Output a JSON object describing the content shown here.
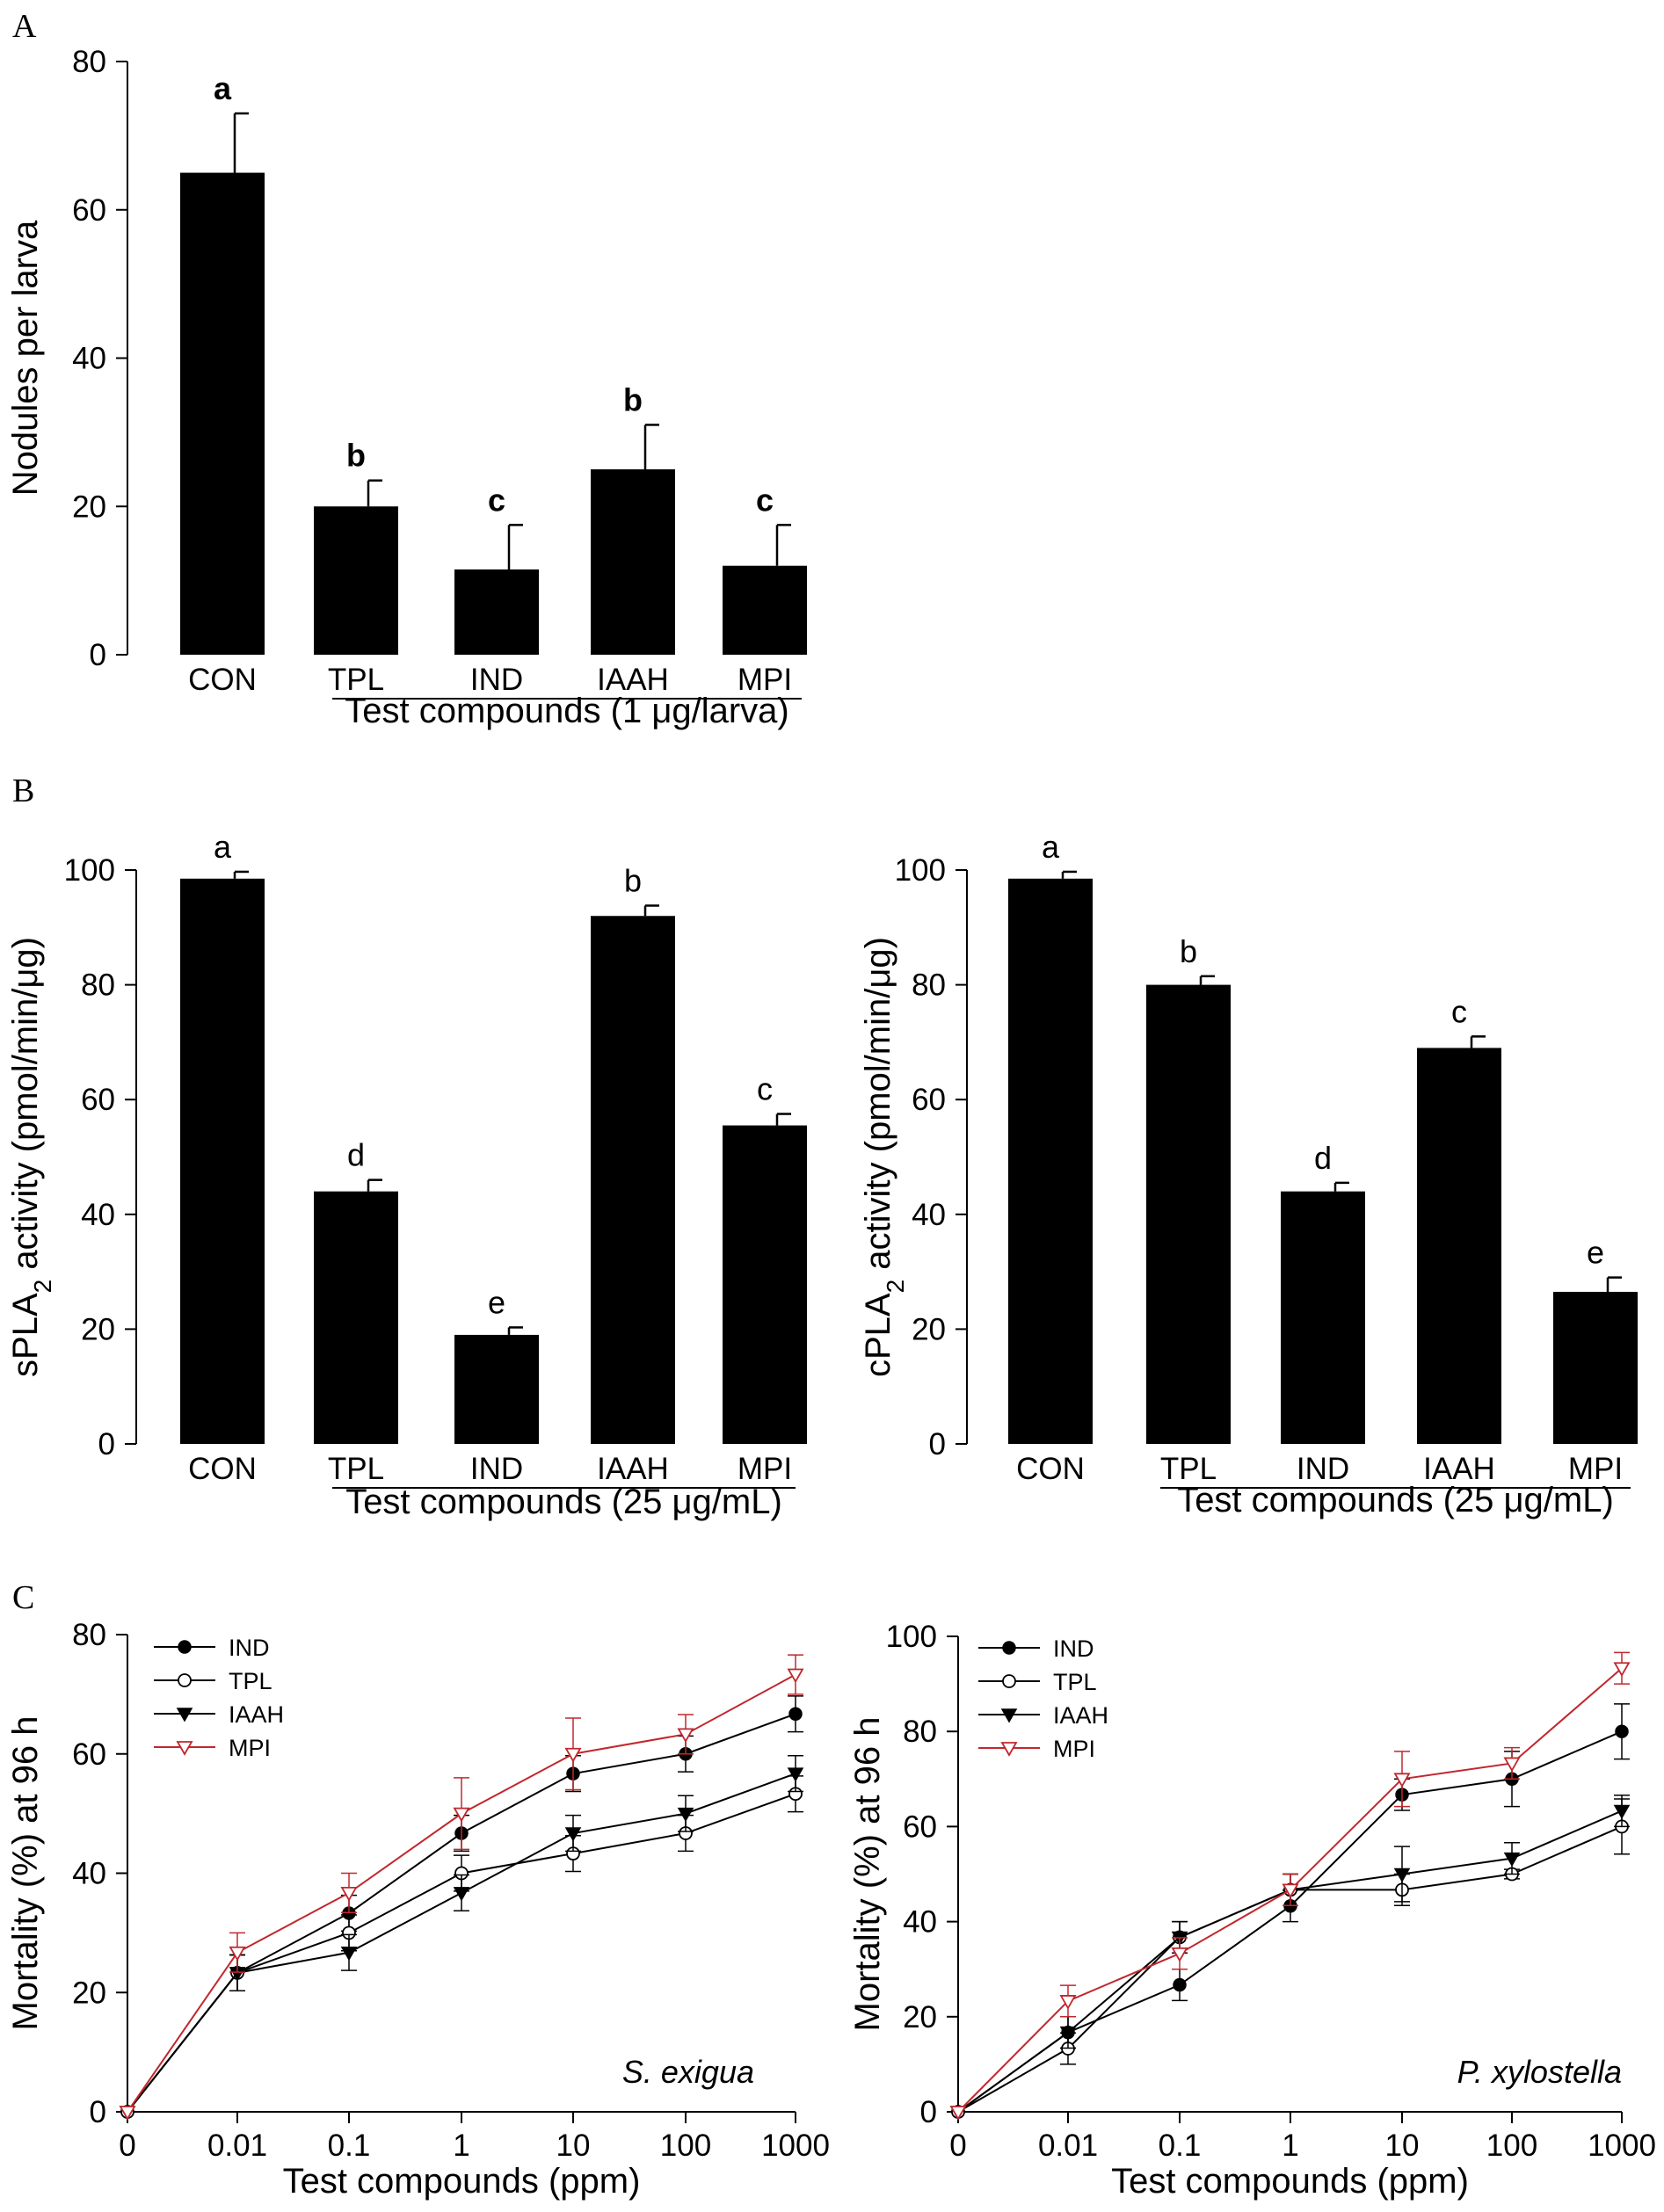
{
  "panels": {
    "A": "A",
    "B": "B",
    "C": "C"
  },
  "chart_data": [
    {
      "id": "A",
      "type": "bar",
      "ylabel": "Nodules per larva",
      "xlabel": "Test compounds (1 μg/larva)",
      "categories": [
        "CON",
        "TPL",
        "IND",
        "IAAH",
        "MPI"
      ],
      "values": [
        65,
        20,
        11.5,
        25,
        12
      ],
      "errors": [
        8,
        3.5,
        6,
        6,
        5.5
      ],
      "letters": [
        "a",
        "b",
        "c",
        "b",
        "c"
      ],
      "ylim": [
        0,
        80
      ],
      "yticks": [
        "0",
        "20",
        "40",
        "60",
        "80"
      ]
    },
    {
      "id": "B-left",
      "type": "bar",
      "ylabel": "sPLA",
      "ylabel_sub": "2",
      "ylabel_rest": " activity (pmol/min/μg)",
      "xlabel": "Test compounds (25 μg/mL)",
      "categories": [
        "CON",
        "TPL",
        "IND",
        "IAAH",
        "MPI"
      ],
      "values": [
        98.5,
        44,
        19,
        92,
        55.5
      ],
      "errors": [
        1.2,
        2,
        1.3,
        1.8,
        2
      ],
      "letters": [
        "a",
        "d",
        "e",
        "b",
        "c"
      ],
      "ylim": [
        0,
        100
      ],
      "yticks": [
        "0",
        "20",
        "40",
        "60",
        "80",
        "100"
      ]
    },
    {
      "id": "B-right",
      "type": "bar",
      "ylabel": "cPLA",
      "ylabel_sub": "2",
      "ylabel_rest": " activity (pmol/min/μg)",
      "xlabel": "Test compounds (25 μg/mL)",
      "categories": [
        "CON",
        "TPL",
        "IND",
        "IAAH",
        "MPI"
      ],
      "values": [
        98.5,
        80,
        44,
        69,
        26.5
      ],
      "errors": [
        1.2,
        1.5,
        1.5,
        2,
        2.5
      ],
      "letters": [
        "a",
        "b",
        "d",
        "c",
        "e"
      ],
      "ylim": [
        0,
        100
      ],
      "yticks": [
        "0",
        "20",
        "40",
        "60",
        "80",
        "100"
      ]
    },
    {
      "id": "C-left",
      "type": "line",
      "ylabel": "Mortality (%) at 96 h",
      "xlabel": "Test compounds (ppm)",
      "species": "S. exigua",
      "x": [
        "0",
        "0.01",
        "0.1",
        "1",
        "10",
        "100",
        "1000"
      ],
      "ylim": [
        0,
        80
      ],
      "yticks": [
        "0",
        "20",
        "40",
        "60",
        "80"
      ],
      "series": [
        {
          "name": "IND",
          "marker": "filled-circle",
          "color": "#000000",
          "values": [
            0,
            23.3,
            33.3,
            46.7,
            56.7,
            60,
            66.7
          ],
          "errors": [
            0,
            3,
            3,
            3,
            3,
            3,
            3
          ]
        },
        {
          "name": "TPL",
          "marker": "open-circle",
          "color": "#000000",
          "values": [
            0,
            23.3,
            30,
            40,
            43.3,
            46.7,
            53.3
          ],
          "errors": [
            0,
            3,
            3,
            3,
            3,
            3,
            3
          ]
        },
        {
          "name": "IAAH",
          "marker": "filled-triangle-down",
          "color": "#000000",
          "values": [
            0,
            23.3,
            26.7,
            36.7,
            46.7,
            50,
            56.7
          ],
          "errors": [
            0,
            3,
            3,
            3,
            3,
            3,
            3
          ]
        },
        {
          "name": "MPI",
          "marker": "open-triangle-down",
          "color": "#c0282d",
          "values": [
            0,
            26.7,
            36.7,
            50,
            60,
            63.3,
            73.3
          ],
          "errors": [
            0,
            3.3,
            3.3,
            6,
            6,
            3.3,
            3.3
          ]
        }
      ]
    },
    {
      "id": "C-right",
      "type": "line",
      "ylabel": "Mortality (%) at 96 h",
      "xlabel": "Test compounds (ppm)",
      "species": "P. xylostella",
      "x": [
        "0",
        "0.01",
        "0.1",
        "1",
        "10",
        "100",
        "1000"
      ],
      "ylim": [
        0,
        100
      ],
      "yticks": [
        "0",
        "20",
        "40",
        "60",
        "80",
        "100"
      ],
      "series": [
        {
          "name": "IND",
          "marker": "filled-circle",
          "color": "#000000",
          "values": [
            0,
            16.7,
            26.7,
            43.3,
            66.7,
            70,
            80
          ],
          "errors": [
            0,
            3.3,
            3.3,
            3.3,
            3.3,
            5.8,
            5.8
          ]
        },
        {
          "name": "TPL",
          "marker": "open-circle",
          "color": "#000000",
          "values": [
            0,
            13.3,
            36.7,
            46.7,
            46.7,
            50,
            60
          ],
          "errors": [
            0,
            3.3,
            3.3,
            3.3,
            3.3,
            1,
            5.8
          ]
        },
        {
          "name": "IAAH",
          "marker": "filled-triangle-down",
          "color": "#000000",
          "values": [
            0,
            16.7,
            36.7,
            46.7,
            50,
            53.3,
            63.3
          ],
          "errors": [
            0,
            3.3,
            3.3,
            3.3,
            5.8,
            3.3,
            3.3
          ]
        },
        {
          "name": "MPI",
          "marker": "open-triangle-down",
          "color": "#c0282d",
          "values": [
            0,
            23.3,
            33.3,
            46.7,
            70,
            73.3,
            93.3
          ],
          "errors": [
            0,
            3.3,
            3.3,
            3.3,
            5.8,
            3.3,
            3.3
          ]
        }
      ]
    }
  ]
}
